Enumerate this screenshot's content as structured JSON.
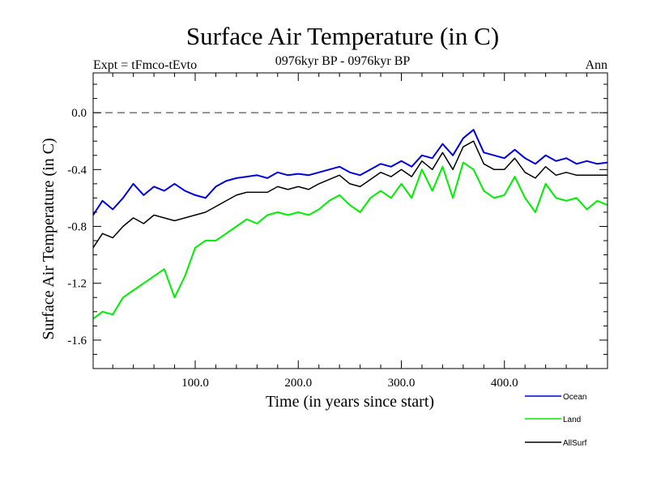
{
  "chart_data": {
    "type": "line",
    "title": "Surface Air Temperature (in C)",
    "subtitle": "0976kyr BP - 0976kyr BP",
    "left_label": "Expt = tFmco-tEvto",
    "right_label": "Ann",
    "xlabel": "Time (in years since start)",
    "ylabel": "Surface Air Temperature (in C)",
    "xlim": [
      1,
      500
    ],
    "ylim": [
      -1.8,
      0.28
    ],
    "x_ticks": [
      {
        "value": 100,
        "label": "100.0"
      },
      {
        "value": 200,
        "label": "200.0"
      },
      {
        "value": 300,
        "label": "300.0"
      },
      {
        "value": 400,
        "label": "400.0"
      }
    ],
    "y_ticks": [
      {
        "value": 0.0,
        "label": "0.0"
      },
      {
        "value": -0.4,
        "label": "-0.4"
      },
      {
        "value": -0.8,
        "label": "-0.8"
      },
      {
        "value": -1.2,
        "label": "-1.2"
      },
      {
        "value": -1.6,
        "label": "-1.6"
      }
    ],
    "reference_line": {
      "value": 0.0,
      "style": "dashed"
    },
    "series": [
      {
        "name": "Ocean",
        "color": "#0000dd",
        "x": [
          1,
          10,
          20,
          30,
          40,
          50,
          60,
          70,
          80,
          90,
          100,
          110,
          120,
          130,
          140,
          150,
          160,
          170,
          180,
          190,
          200,
          210,
          220,
          230,
          240,
          250,
          260,
          270,
          280,
          290,
          300,
          310,
          320,
          330,
          340,
          350,
          360,
          370,
          380,
          390,
          400,
          410,
          420,
          430,
          440,
          450,
          460,
          470,
          480,
          490,
          500
        ],
        "values": [
          -0.72,
          -0.62,
          -0.68,
          -0.6,
          -0.5,
          -0.58,
          -0.52,
          -0.55,
          -0.5,
          -0.55,
          -0.58,
          -0.6,
          -0.52,
          -0.48,
          -0.46,
          -0.45,
          -0.44,
          -0.46,
          -0.42,
          -0.44,
          -0.43,
          -0.44,
          -0.42,
          -0.4,
          -0.38,
          -0.42,
          -0.44,
          -0.4,
          -0.36,
          -0.38,
          -0.34,
          -0.38,
          -0.3,
          -0.32,
          -0.22,
          -0.3,
          -0.18,
          -0.12,
          -0.28,
          -0.3,
          -0.32,
          -0.26,
          -0.32,
          -0.36,
          -0.3,
          -0.34,
          -0.32,
          -0.36,
          -0.34,
          -0.36,
          -0.35
        ]
      },
      {
        "name": "Land",
        "color": "#00ee00",
        "x": [
          1,
          10,
          20,
          30,
          40,
          50,
          60,
          70,
          80,
          90,
          100,
          110,
          120,
          130,
          140,
          150,
          160,
          170,
          180,
          190,
          200,
          210,
          220,
          230,
          240,
          250,
          260,
          270,
          280,
          290,
          300,
          310,
          320,
          330,
          340,
          350,
          360,
          370,
          380,
          390,
          400,
          410,
          420,
          430,
          440,
          450,
          460,
          470,
          480,
          490,
          500
        ],
        "values": [
          -1.45,
          -1.4,
          -1.42,
          -1.3,
          -1.25,
          -1.2,
          -1.15,
          -1.1,
          -1.3,
          -1.15,
          -0.95,
          -0.9,
          -0.9,
          -0.85,
          -0.8,
          -0.75,
          -0.78,
          -0.72,
          -0.7,
          -0.72,
          -0.7,
          -0.72,
          -0.68,
          -0.62,
          -0.58,
          -0.65,
          -0.7,
          -0.6,
          -0.55,
          -0.6,
          -0.5,
          -0.6,
          -0.4,
          -0.55,
          -0.38,
          -0.6,
          -0.35,
          -0.4,
          -0.55,
          -0.6,
          -0.58,
          -0.45,
          -0.6,
          -0.7,
          -0.5,
          -0.6,
          -0.62,
          -0.6,
          -0.68,
          -0.62,
          -0.65
        ]
      },
      {
        "name": "AllSurf",
        "color": "#000000",
        "x": [
          1,
          10,
          20,
          30,
          40,
          50,
          60,
          70,
          80,
          90,
          100,
          110,
          120,
          130,
          140,
          150,
          160,
          170,
          180,
          190,
          200,
          210,
          220,
          230,
          240,
          250,
          260,
          270,
          280,
          290,
          300,
          310,
          320,
          330,
          340,
          350,
          360,
          370,
          380,
          390,
          400,
          410,
          420,
          430,
          440,
          450,
          460,
          470,
          480,
          490,
          500
        ],
        "values": [
          -0.95,
          -0.85,
          -0.88,
          -0.8,
          -0.74,
          -0.78,
          -0.72,
          -0.74,
          -0.76,
          -0.74,
          -0.72,
          -0.7,
          -0.66,
          -0.62,
          -0.58,
          -0.56,
          -0.56,
          -0.56,
          -0.52,
          -0.54,
          -0.52,
          -0.54,
          -0.5,
          -0.47,
          -0.44,
          -0.5,
          -0.52,
          -0.47,
          -0.42,
          -0.45,
          -0.4,
          -0.45,
          -0.34,
          -0.4,
          -0.28,
          -0.4,
          -0.24,
          -0.2,
          -0.36,
          -0.4,
          -0.4,
          -0.32,
          -0.42,
          -0.46,
          -0.38,
          -0.44,
          -0.42,
          -0.44,
          -0.44,
          -0.44,
          -0.44
        ]
      }
    ],
    "legend": {
      "position": "bottom-right",
      "entries": [
        "Ocean",
        "Land",
        "AllSurf"
      ]
    }
  }
}
